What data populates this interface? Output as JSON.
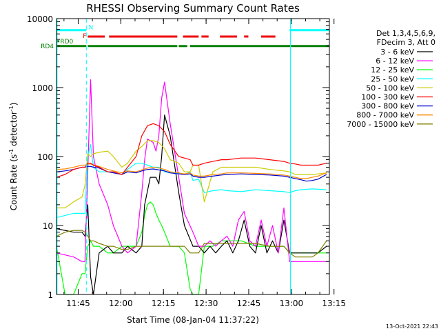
{
  "chart_data": {
    "type": "line",
    "title": "RHESSI Observing Summary Count Rates",
    "xlabel": "Start Time (08-Jan-04 11:37:22)",
    "ylabel": "Count Rate (s⁻¹ detector⁻¹)",
    "ylabel_main": "Count Rate (s",
    "ylabel_sup1": "-1",
    "ylabel_mid": " detector",
    "ylabel_sup2": "-1",
    "ylabel_end": ")",
    "x_unit": "minutes after 11:37:22",
    "xlim": [
      0,
      96
    ],
    "ylim": [
      1,
      10000
    ],
    "yscale": "log",
    "x_ticks": [
      {
        "label": "11:45",
        "x": 7.63
      },
      {
        "label": "12:00",
        "x": 22.63
      },
      {
        "label": "12:15",
        "x": 37.63
      },
      {
        "label": "12:30",
        "x": 52.63
      },
      {
        "label": "12:45",
        "x": 67.63
      },
      {
        "label": "13:00",
        "x": 82.63
      },
      {
        "label": "13:15",
        "x": 97.63
      }
    ],
    "y_ticks": [
      {
        "label": "1",
        "v": 1
      },
      {
        "label": "10",
        "v": 10
      },
      {
        "label": "100",
        "v": 100
      },
      {
        "label": "1000",
        "v": 1000
      },
      {
        "label": "10000",
        "v": 10000
      }
    ],
    "legend_header": [
      "Det 1,3,4,5,6,9,",
      "FDecim 3, Att 0"
    ],
    "series": [
      {
        "name": "3 - 6 keV",
        "color": "#000000",
        "x": [
          0,
          6,
          9,
          10,
          11,
          12,
          13,
          15,
          18,
          20,
          23,
          25,
          28,
          30,
          31,
          33,
          35,
          36,
          37,
          38,
          40,
          43,
          45,
          48,
          50,
          52,
          54,
          56,
          58,
          60,
          62,
          64,
          66,
          68,
          70,
          72,
          74,
          76,
          78,
          80,
          82,
          84,
          86,
          88,
          90,
          92,
          95
        ],
        "y": [
          9,
          8,
          8,
          7,
          20,
          1.8,
          1,
          4,
          5,
          4,
          4,
          5,
          4,
          5,
          20,
          50,
          50,
          40,
          100,
          400,
          200,
          30,
          10,
          5,
          5,
          4,
          5,
          4,
          5,
          6,
          4,
          6,
          12,
          5,
          4,
          10,
          4,
          6,
          4,
          12,
          4,
          4,
          4,
          4,
          4,
          4,
          5
        ]
      },
      {
        "name": "6 - 12 keV",
        "color": "#ff00ff",
        "x": [
          0,
          6,
          9,
          10,
          11,
          12,
          13,
          15,
          18,
          20,
          23,
          25,
          28,
          30,
          31,
          32,
          34,
          35,
          36,
          37,
          38,
          40,
          43,
          45,
          48,
          50,
          52,
          54,
          56,
          58,
          60,
          62,
          64,
          66,
          68,
          70,
          72,
          74,
          76,
          78,
          80,
          82,
          84,
          86,
          88,
          90,
          92,
          95
        ],
        "y": [
          4,
          3.5,
          3,
          3,
          60,
          1300,
          100,
          40,
          20,
          10,
          5,
          4,
          5,
          30,
          90,
          180,
          160,
          120,
          200,
          700,
          1200,
          300,
          50,
          15,
          8,
          5,
          5,
          6,
          5,
          6,
          7,
          5,
          12,
          16,
          6,
          5,
          12,
          5,
          10,
          4,
          18,
          3,
          3,
          3,
          3,
          3,
          3,
          3
        ]
      },
      {
        "name": "12 - 25 keV",
        "color": "#00ff00",
        "x": [
          0,
          3,
          6,
          9,
          10,
          11,
          12,
          13,
          15,
          18,
          20,
          23,
          25,
          28,
          30,
          31,
          32,
          33,
          34,
          35,
          36,
          37,
          38,
          40,
          43,
          45,
          47,
          48,
          50,
          52,
          55,
          58,
          60,
          65,
          70,
          75,
          80,
          82,
          85,
          88,
          90,
          92,
          95
        ],
        "y": [
          5,
          1,
          1,
          2,
          2,
          5,
          6,
          5,
          5,
          4,
          4,
          5,
          5,
          5,
          8,
          14,
          20,
          22,
          20,
          15,
          12,
          10,
          8,
          5,
          5,
          4,
          1.2,
          1,
          1,
          5,
          5,
          6,
          6,
          6,
          5,
          5,
          5,
          4,
          4,
          4,
          4,
          4,
          4
        ]
      },
      {
        "name": "25 - 50 keV",
        "color": "#00ffff",
        "x": [
          0,
          3,
          6,
          9,
          10,
          11,
          12,
          13,
          15,
          18,
          20,
          23,
          25,
          28,
          30,
          32,
          34,
          36,
          38,
          40,
          43,
          45,
          47,
          48,
          50,
          52,
          55,
          58,
          60,
          65,
          70,
          75,
          80,
          82,
          84,
          86,
          90,
          95
        ],
        "y": [
          13,
          14,
          15,
          15,
          15,
          100,
          150,
          70,
          60,
          60,
          60,
          55,
          65,
          80,
          80,
          75,
          70,
          70,
          60,
          58,
          57,
          55,
          60,
          45,
          47,
          30,
          32,
          33,
          32,
          31,
          33,
          32,
          31,
          30,
          32,
          33,
          34,
          33
        ]
      },
      {
        "name": "50 - 100 keV",
        "color": "#cccc00",
        "x": [
          0,
          3,
          6,
          9,
          10,
          11,
          12,
          13,
          15,
          18,
          20,
          23,
          25,
          28,
          30,
          32,
          34,
          36,
          38,
          40,
          43,
          45,
          47,
          48,
          50,
          52,
          55,
          58,
          60,
          65,
          70,
          75,
          80,
          82,
          84,
          86,
          88,
          90,
          92,
          95
        ],
        "y": [
          18,
          18,
          22,
          26,
          38,
          110,
          100,
          110,
          115,
          120,
          100,
          70,
          80,
          120,
          140,
          170,
          170,
          160,
          130,
          90,
          80,
          60,
          60,
          75,
          75,
          22,
          60,
          70,
          70,
          70,
          70,
          65,
          62,
          60,
          55,
          55,
          55,
          55,
          56,
          58
        ]
      },
      {
        "name": "100 - 300 keV",
        "color": "#ff0000",
        "x": [
          0,
          3,
          6,
          9,
          10,
          11,
          12,
          13,
          15,
          18,
          20,
          23,
          25,
          28,
          30,
          32,
          34,
          36,
          38,
          40,
          43,
          45,
          47,
          48,
          50,
          52,
          55,
          58,
          60,
          65,
          70,
          75,
          80,
          82,
          84,
          86,
          88,
          90,
          92,
          95
        ],
        "y": [
          50,
          55,
          65,
          70,
          70,
          80,
          80,
          75,
          70,
          60,
          60,
          55,
          70,
          100,
          200,
          280,
          300,
          280,
          230,
          150,
          100,
          95,
          90,
          75,
          75,
          80,
          85,
          90,
          90,
          95,
          95,
          90,
          85,
          80,
          78,
          75,
          75,
          75,
          75,
          80
        ]
      },
      {
        "name": "300 - 800 keV",
        "color": "#0000cc",
        "x": [
          0,
          3,
          6,
          9,
          10,
          11,
          12,
          13,
          15,
          18,
          20,
          23,
          25,
          28,
          30,
          32,
          34,
          36,
          38,
          40,
          43,
          45,
          47,
          48,
          50,
          52,
          55,
          58,
          60,
          65,
          70,
          75,
          80,
          82,
          84,
          86,
          88,
          90,
          92,
          95
        ],
        "y": [
          60,
          62,
          65,
          70,
          70,
          72,
          72,
          70,
          68,
          60,
          58,
          55,
          60,
          58,
          62,
          65,
          66,
          64,
          62,
          58,
          56,
          55,
          56,
          52,
          50,
          50,
          52,
          54,
          55,
          56,
          55,
          54,
          52,
          50,
          48,
          46,
          44,
          45,
          47,
          55
        ]
      },
      {
        "name": "800 - 7000 keV",
        "color": "#ff8800",
        "x": [
          0,
          3,
          6,
          9,
          10,
          11,
          12,
          13,
          15,
          18,
          20,
          23,
          25,
          28,
          30,
          32,
          34,
          36,
          38,
          40,
          43,
          45,
          47,
          48,
          50,
          52,
          55,
          58,
          60,
          65,
          70,
          75,
          80,
          82,
          84,
          86,
          88,
          90,
          92,
          95
        ],
        "y": [
          65,
          66,
          70,
          75,
          75,
          78,
          78,
          76,
          72,
          65,
          62,
          58,
          62,
          60,
          64,
          68,
          70,
          68,
          65,
          60,
          58,
          56,
          58,
          54,
          52,
          52,
          55,
          56,
          58,
          58,
          57,
          56,
          54,
          52,
          50,
          48,
          48,
          50,
          52,
          58
        ]
      },
      {
        "name": "7000 - 15000 keV",
        "color": "#808000",
        "x": [
          0,
          3,
          6,
          9,
          10,
          11,
          12,
          13,
          15,
          18,
          20,
          23,
          25,
          28,
          30,
          32,
          34,
          36,
          38,
          40,
          43,
          45,
          47,
          48,
          50,
          52,
          55,
          58,
          60,
          65,
          70,
          75,
          80,
          82,
          84,
          86,
          88,
          90,
          92,
          95
        ],
        "y": [
          7,
          8,
          8.5,
          8.5,
          8,
          7,
          6,
          6,
          5.5,
          5,
          5,
          4.5,
          4.5,
          5,
          5,
          5,
          5,
          5,
          5,
          5,
          5,
          5,
          4,
          4,
          4,
          5.5,
          5.5,
          5.5,
          5.5,
          5.5,
          5.5,
          5,
          5,
          4,
          3.5,
          3.5,
          3.5,
          3.5,
          4,
          6
        ]
      }
    ],
    "flags": [
      {
        "name": "N",
        "label": "N",
        "color": "#00ffff",
        "level": 6800,
        "segments": [
          [
            0,
            10.5
          ],
          [
            82,
            96
          ]
        ]
      },
      {
        "name": "F",
        "label": "F",
        "color": "#ee0000",
        "level": 5500,
        "segments": [
          [
            11,
            17
          ],
          [
            18.5,
            42.5
          ],
          [
            44.5,
            50
          ],
          [
            51,
            53.5
          ],
          [
            57.5,
            63.5
          ],
          [
            66,
            67.5
          ],
          [
            72,
            77
          ]
        ]
      },
      {
        "name": "RD0",
        "label": "RD0",
        "color": "#008000",
        "level": 4700,
        "segments": [
          [
            0,
            1
          ]
        ]
      },
      {
        "name": "RD4",
        "label": "RD4",
        "color": "#008000",
        "level": 4000,
        "segments": [
          [
            0,
            10.5
          ],
          [
            11,
            42.5
          ],
          [
            43,
            46
          ],
          [
            47,
            96
          ]
        ]
      }
    ],
    "markers": [
      {
        "x": 0.2,
        "style": "solid",
        "color": "#00ffff"
      },
      {
        "x": 10.5,
        "style": "dashed",
        "color": "#00ffff"
      },
      {
        "x": 82.3,
        "style": "solid",
        "color": "#00ffff"
      },
      {
        "x": 96.0,
        "style": "dashed",
        "color": "#00ffff"
      }
    ]
  },
  "timestamp": "13-Oct-2021 22:43"
}
